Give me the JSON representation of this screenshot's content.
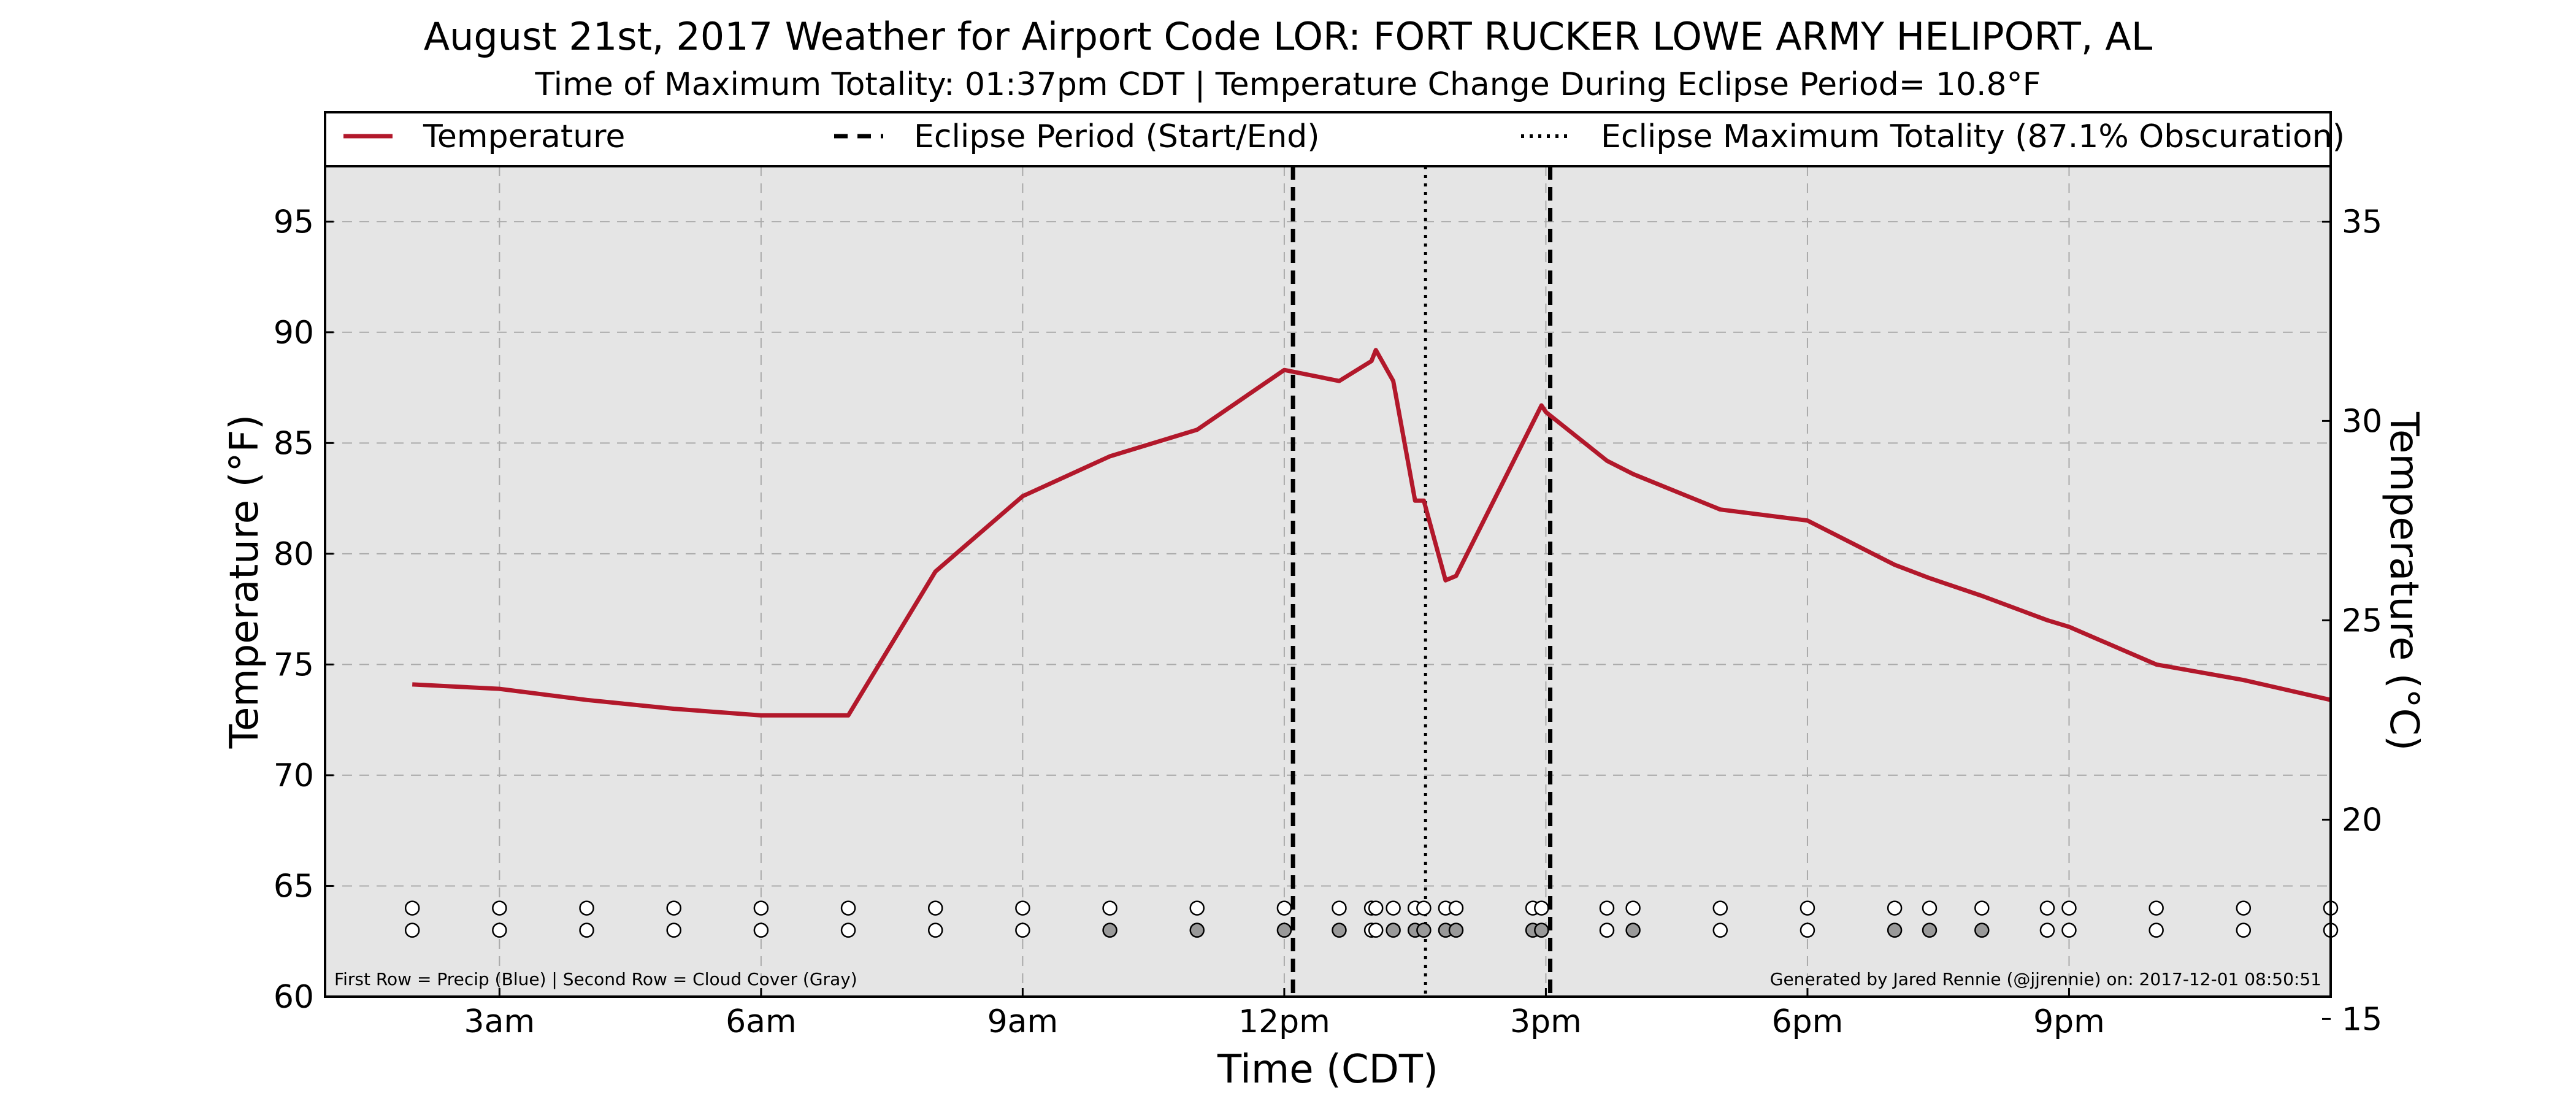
{
  "title": "August 21st, 2017 Weather for Airport Code LOR: FORT RUCKER LOWE ARMY HELIPORT, AL",
  "subtitle": "Time of Maximum Totality: 01:37pm CDT | Temperature Change During Eclipse Period= 10.8°F",
  "legend": {
    "temperature": "Temperature",
    "eclipse_period": "Eclipse Period (Start/End)",
    "eclipse_max": "Eclipse Maximum Totality (87.1% Obscuration)"
  },
  "notes": {
    "left": "First Row = Precip (Blue) | Second Row = Cloud Cover (Gray)",
    "right": "Generated by Jared Rennie (@jjrennie) on: 2017-12-01 08:50:51"
  },
  "colors": {
    "temperature_line": "#B2182B",
    "plot_background": "#E5E5E5",
    "cloud_fill": "#999999",
    "clear_fill": "#FFFFFF"
  },
  "chart_data": {
    "type": "line",
    "xlabel": "Time (CDT)",
    "ylabel_left": "Temperature (°F)",
    "ylabel_right": "Temperature (°C)",
    "xlim": [
      1.0,
      24.0
    ],
    "ylim_f": [
      60,
      97.5
    ],
    "ylim_c": [
      15.56,
      36.39
    ],
    "x_ticks": [
      {
        "x": 3,
        "label": "3am"
      },
      {
        "x": 6,
        "label": "6am"
      },
      {
        "x": 9,
        "label": "9am"
      },
      {
        "x": 12,
        "label": "12pm"
      },
      {
        "x": 15,
        "label": "3pm"
      },
      {
        "x": 18,
        "label": "6pm"
      },
      {
        "x": 21,
        "label": "9pm"
      }
    ],
    "y_ticks_f": [
      60,
      65,
      70,
      75,
      80,
      85,
      90,
      95
    ],
    "y_ticks_c": [
      15,
      20,
      25,
      30,
      35
    ],
    "grid": true,
    "legend_position": "top",
    "series": [
      {
        "name": "Temperature",
        "x": [
          2.0,
          3.0,
          4.0,
          5.0,
          6.0,
          7.0,
          8.0,
          9.0,
          10.0,
          11.0,
          12.0,
          12.63,
          13.0,
          13.05,
          13.25,
          13.5,
          13.6,
          13.85,
          13.97,
          14.95,
          15.0,
          15.7,
          16.0,
          17.0,
          18.0,
          19.0,
          19.4,
          20.0,
          20.75,
          21.0,
          22.0,
          23.0,
          24.0
        ],
        "y": [
          74.1,
          73.9,
          73.4,
          73.0,
          72.7,
          72.7,
          79.2,
          82.6,
          84.4,
          85.6,
          88.3,
          87.8,
          88.7,
          89.2,
          87.8,
          82.4,
          82.4,
          78.8,
          79.0,
          86.7,
          86.4,
          84.2,
          83.6,
          82.0,
          81.5,
          79.5,
          78.9,
          78.1,
          77.0,
          76.7,
          75.0,
          74.3,
          73.4
        ]
      }
    ],
    "eclipse_start": 12.1,
    "eclipse_end": 15.05,
    "eclipse_max": 13.62,
    "observations": [
      {
        "x": 2.0,
        "cloud": false
      },
      {
        "x": 3.0,
        "cloud": false
      },
      {
        "x": 4.0,
        "cloud": false
      },
      {
        "x": 5.0,
        "cloud": false
      },
      {
        "x": 6.0,
        "cloud": false
      },
      {
        "x": 7.0,
        "cloud": false
      },
      {
        "x": 8.0,
        "cloud": false
      },
      {
        "x": 9.0,
        "cloud": false
      },
      {
        "x": 10.0,
        "cloud": true
      },
      {
        "x": 11.0,
        "cloud": true
      },
      {
        "x": 12.0,
        "cloud": true
      },
      {
        "x": 12.63,
        "cloud": true
      },
      {
        "x": 13.0,
        "cloud": false
      },
      {
        "x": 13.05,
        "cloud": false
      },
      {
        "x": 13.25,
        "cloud": true
      },
      {
        "x": 13.5,
        "cloud": true
      },
      {
        "x": 13.6,
        "cloud": true
      },
      {
        "x": 13.85,
        "cloud": true
      },
      {
        "x": 13.97,
        "cloud": true
      },
      {
        "x": 14.85,
        "cloud": true
      },
      {
        "x": 14.95,
        "cloud": true
      },
      {
        "x": 15.7,
        "cloud": false
      },
      {
        "x": 16.0,
        "cloud": true
      },
      {
        "x": 17.0,
        "cloud": false
      },
      {
        "x": 18.0,
        "cloud": false
      },
      {
        "x": 19.0,
        "cloud": true
      },
      {
        "x": 19.4,
        "cloud": true
      },
      {
        "x": 20.0,
        "cloud": true
      },
      {
        "x": 20.75,
        "cloud": false
      },
      {
        "x": 21.0,
        "cloud": false
      },
      {
        "x": 22.0,
        "cloud": false
      },
      {
        "x": 23.0,
        "cloud": false
      },
      {
        "x": 24.0,
        "cloud": false
      }
    ]
  }
}
